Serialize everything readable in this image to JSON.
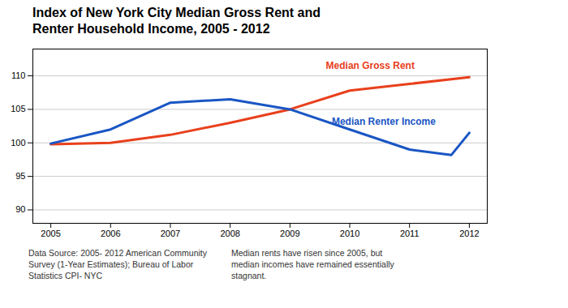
{
  "chart_data": {
    "type": "line",
    "title": "Index of New York City Median Gross Rent and\nRenter Household Income, 2005 - 2012",
    "series": [
      {
        "name": "Median Gross Rent",
        "color": "#e8401c",
        "x": [
          2005,
          2006,
          2007,
          2008,
          2009,
          2010,
          2011,
          2012
        ],
        "values": [
          99.8,
          100.0,
          101.2,
          103.0,
          105.0,
          107.8,
          108.8,
          109.8
        ]
      },
      {
        "name": "Median Renter Income",
        "color": "#1a56c4",
        "x": [
          2005,
          2006,
          2007,
          2008,
          2009,
          2010,
          2011,
          2011.7,
          2012
        ],
        "values": [
          99.9,
          102.0,
          106.0,
          106.5,
          105.0,
          102.0,
          99.0,
          98.2,
          101.5
        ]
      }
    ],
    "annotations": [
      {
        "text": "Median Gross Rent",
        "x": 2009.6,
        "y": 111.5,
        "color": "#e8401c"
      },
      {
        "text": "Median Renter Income",
        "x": 2009.7,
        "y": 103.2,
        "color": "#1a56c4"
      }
    ],
    "footnotes": [
      "Data Source: 2005- 2012 American Community\nSurvey (1-Year Estimates); Bureau of Labor\nStatistics CPI- NYC",
      "Median rents have risen since 2005, but\nmedian incomes have remained essentially\nstagnant."
    ],
    "xlim": [
      2004.7,
      2012.3
    ],
    "xticks": [
      2005,
      2006,
      2007,
      2008,
      2009,
      2010,
      2011,
      2012
    ],
    "ylim": [
      88,
      114
    ],
    "yticks": [
      90,
      95,
      100,
      105,
      110
    ],
    "grid": true
  }
}
